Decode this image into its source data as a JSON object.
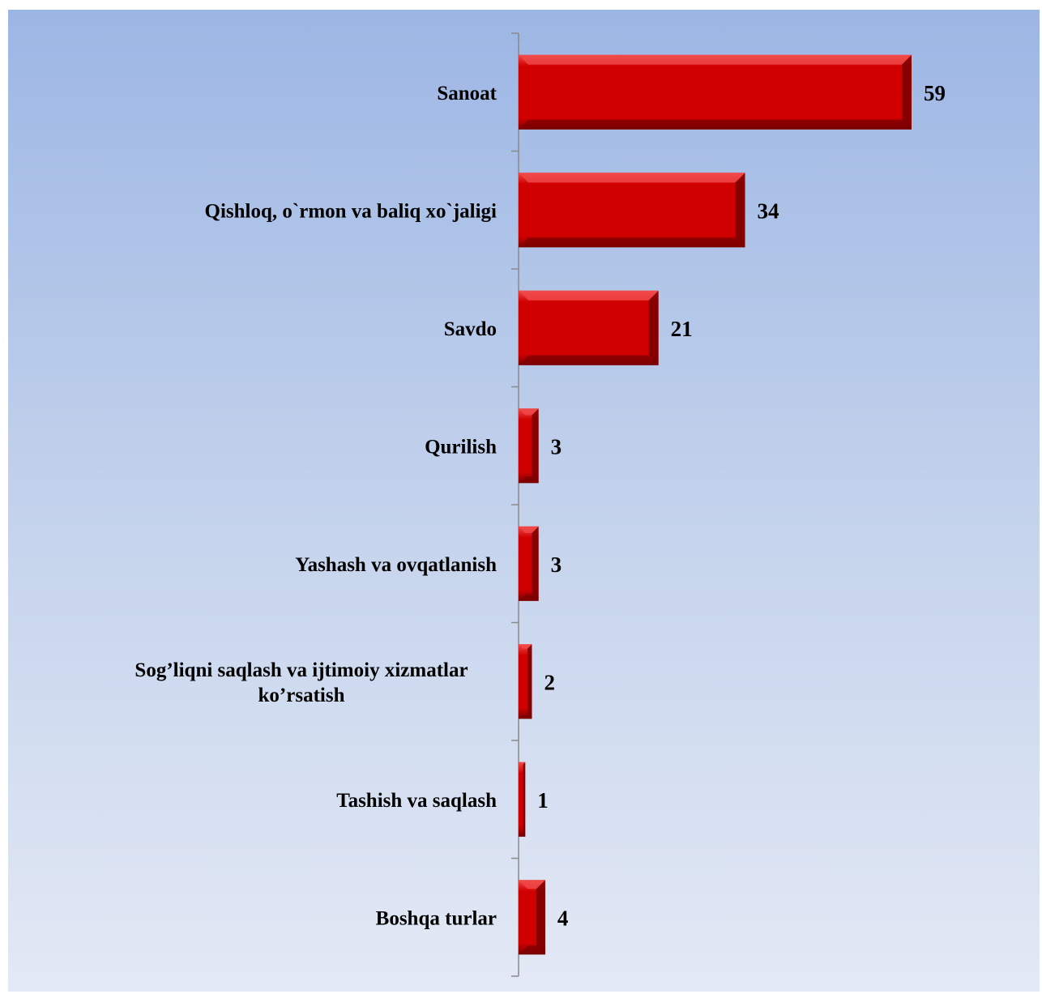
{
  "chart_data": {
    "type": "bar",
    "orientation": "horizontal",
    "title": "",
    "xlabel": "",
    "ylabel": "",
    "categories": [
      "Sanoat",
      "Qishloq, o`rmon va baliq xo`jaligi",
      "Savdo",
      "Qurilish",
      "Yashash va ovqatlanish",
      "Sog’liqni saqlash va ijtimoiy xizmatlar ko’rsatish",
      "Tashish va saqlash",
      "Boshqa  turlar"
    ],
    "category_lines": [
      [
        "Sanoat"
      ],
      [
        "Qishloq, o`rmon va baliq xo`jaligi"
      ],
      [
        "Savdo"
      ],
      [
        "Qurilish"
      ],
      [
        "Yashash va ovqatlanish"
      ],
      [
        "Sog’liqni saqlash va ijtimoiy xizmatlar",
        "ko’rsatish"
      ],
      [
        "Tashish va saqlash"
      ],
      [
        "Boshqa  turlar"
      ]
    ],
    "values": [
      59,
      34,
      21,
      3,
      3,
      2,
      1,
      4
    ],
    "value_labels": [
      "59",
      "34",
      "21",
      "3",
      "3",
      "2",
      "1",
      "4"
    ],
    "xlim": [
      0,
      100
    ],
    "grid": false,
    "legend": "none",
    "colors": {
      "bar": "#d00000",
      "bar_light": "#f04a4a",
      "bar_dark": "#7a0000",
      "axis": "#8a8a8a",
      "background_top": "#9cb6e4",
      "background_bottom": "#e3e9f5"
    }
  }
}
